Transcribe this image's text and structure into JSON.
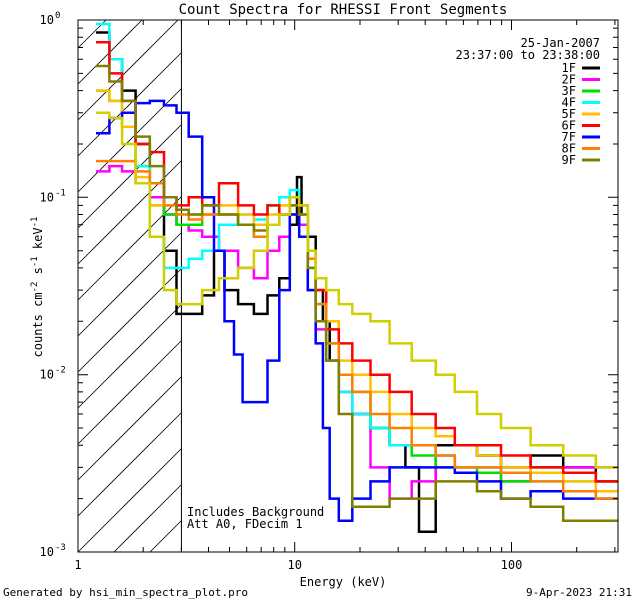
{
  "chart_data": {
    "type": "line",
    "title": "Count Spectra for RHESSI Front Segments",
    "xlabel": "Energy (keV)",
    "ylabel": "counts cm^-2 s^-1 keV^-1",
    "xscale": "log",
    "yscale": "log",
    "xlim": [
      1,
      310
    ],
    "ylim": [
      0.001,
      1
    ],
    "x_ticks": [
      {
        "value": 1,
        "label": "1"
      },
      {
        "value": 10,
        "label": "10"
      },
      {
        "value": 100,
        "label": "100"
      }
    ],
    "y_ticks": [
      {
        "value": 1,
        "label": "10",
        "exp": "0"
      },
      {
        "value": 0.1,
        "label": "10",
        "exp": "-1"
      },
      {
        "value": 0.01,
        "label": "10",
        "exp": "-2"
      },
      {
        "value": 0.001,
        "label": "10",
        "exp": "-3"
      }
    ],
    "hatched_region_keV": [
      1,
      3
    ],
    "date": "25-Jan-2007",
    "time_range": "23:37:00 to 23:38:00",
    "annotations": [
      "Includes Background",
      "Att A0, FDecim 1"
    ],
    "footer_left": "Generated by hsi_min_spectra_plot.pro",
    "footer_right": "9-Apr-2023 21:31",
    "series": [
      {
        "name": "1F",
        "color": "#000000",
        "x": [
          1.3,
          1.5,
          1.7,
          2.0,
          2.3,
          2.7,
          3.0,
          3.5,
          4.0,
          4.5,
          5.0,
          6.0,
          7.0,
          8.0,
          9.0,
          10.0,
          10.5,
          11.0,
          12.0,
          13.0,
          14.0,
          15.0,
          17.0,
          20.0,
          25.0,
          30.0,
          35.0,
          40.0,
          50.0,
          60.0,
          80.0,
          100.0,
          150.0,
          200.0,
          300.0
        ],
        "values": [
          0.85,
          0.6,
          0.4,
          0.2,
          0.12,
          0.05,
          0.022,
          0.022,
          0.028,
          0.05,
          0.03,
          0.025,
          0.022,
          0.028,
          0.035,
          0.07,
          0.13,
          0.08,
          0.06,
          0.03,
          0.02,
          0.012,
          0.008,
          0.006,
          0.005,
          0.004,
          0.003,
          0.0013,
          0.004,
          0.004,
          0.0035,
          0.003,
          0.0035,
          0.003,
          0.0025
        ]
      },
      {
        "name": "2F",
        "color": "#ff00ff",
        "x": [
          1.3,
          1.5,
          1.7,
          2.0,
          2.3,
          2.7,
          3.0,
          3.5,
          4.0,
          5.0,
          6.0,
          7.0,
          8.0,
          9.0,
          10.0,
          11.0,
          12.0,
          13.0,
          15.0,
          17.0,
          20.0,
          25.0,
          30.0,
          40.0,
          50.0,
          60.0,
          80.0,
          100.0,
          150.0,
          200.0,
          300.0
        ],
        "values": [
          0.14,
          0.15,
          0.14,
          0.12,
          0.1,
          0.08,
          0.07,
          0.065,
          0.06,
          0.05,
          0.04,
          0.035,
          0.05,
          0.06,
          0.08,
          0.07,
          0.03,
          0.018,
          0.012,
          0.008,
          0.006,
          0.003,
          0.002,
          0.0025,
          0.0035,
          0.003,
          0.003,
          0.0025,
          0.0028,
          0.003,
          0.003
        ]
      },
      {
        "name": "3F",
        "color": "#00e000",
        "x": [
          1.3,
          1.5,
          1.7,
          2.0,
          2.3,
          2.7,
          3.0,
          3.5,
          4.0,
          5.0,
          6.0,
          7.0,
          8.0,
          9.0,
          10.0,
          11.0,
          12.0,
          13.0,
          15.0,
          17.0,
          20.0,
          25.0,
          30.0,
          40.0,
          50.0,
          60.0,
          80.0,
          100.0,
          150.0,
          200.0,
          300.0
        ],
        "values": [
          0.4,
          0.35,
          0.25,
          0.15,
          0.09,
          0.08,
          0.07,
          0.07,
          0.08,
          0.08,
          0.07,
          0.06,
          0.09,
          0.08,
          0.1,
          0.08,
          0.04,
          0.025,
          0.015,
          0.01,
          0.008,
          0.005,
          0.004,
          0.0035,
          0.003,
          0.003,
          0.0028,
          0.0025,
          0.003,
          0.0028,
          0.0025
        ]
      },
      {
        "name": "4F",
        "color": "#00ffff",
        "x": [
          1.3,
          1.5,
          1.7,
          2.0,
          2.3,
          2.7,
          3.0,
          3.5,
          4.0,
          5.0,
          6.0,
          7.0,
          8.0,
          9.0,
          10.0,
          11.0,
          12.0,
          13.0,
          15.0,
          17.0,
          20.0,
          25.0,
          30.0,
          40.0,
          50.0,
          60.0,
          80.0,
          100.0,
          150.0,
          200.0,
          300.0
        ],
        "values": [
          0.95,
          0.6,
          0.3,
          0.15,
          0.06,
          0.04,
          0.04,
          0.045,
          0.05,
          0.07,
          0.08,
          0.075,
          0.09,
          0.1,
          0.11,
          0.09,
          0.04,
          0.025,
          0.012,
          0.008,
          0.006,
          0.005,
          0.004,
          0.004,
          0.0035,
          0.003,
          0.003,
          0.0028,
          0.0025,
          0.0025,
          0.002
        ]
      },
      {
        "name": "5F",
        "color": "#ffc000",
        "x": [
          1.3,
          1.5,
          1.7,
          2.0,
          2.3,
          2.7,
          3.0,
          3.5,
          4.0,
          5.0,
          6.0,
          7.0,
          8.0,
          9.0,
          10.0,
          11.0,
          12.0,
          13.0,
          15.0,
          17.0,
          20.0,
          25.0,
          30.0,
          40.0,
          50.0,
          60.0,
          80.0,
          100.0,
          150.0,
          200.0,
          300.0
        ],
        "values": [
          0.4,
          0.35,
          0.25,
          0.13,
          0.09,
          0.09,
          0.085,
          0.08,
          0.09,
          0.09,
          0.08,
          0.07,
          0.08,
          0.09,
          0.09,
          0.08,
          0.05,
          0.03,
          0.02,
          0.012,
          0.01,
          0.008,
          0.006,
          0.005,
          0.0045,
          0.004,
          0.0035,
          0.003,
          0.0028,
          0.0025,
          0.0022
        ]
      },
      {
        "name": "6F",
        "color": "#ff0000",
        "x": [
          1.3,
          1.5,
          1.7,
          2.0,
          2.3,
          2.7,
          3.0,
          3.5,
          4.0,
          5.0,
          6.0,
          7.0,
          8.0,
          9.0,
          10.0,
          11.0,
          12.0,
          13.0,
          15.0,
          17.0,
          20.0,
          25.0,
          30.0,
          40.0,
          50.0,
          60.0,
          80.0,
          100.0,
          150.0,
          200.0,
          300.0
        ],
        "values": [
          0.75,
          0.5,
          0.35,
          0.2,
          0.18,
          0.1,
          0.09,
          0.1,
          0.09,
          0.12,
          0.09,
          0.08,
          0.09,
          0.08,
          0.1,
          0.09,
          0.05,
          0.03,
          0.018,
          0.015,
          0.012,
          0.01,
          0.008,
          0.006,
          0.005,
          0.004,
          0.004,
          0.0035,
          0.003,
          0.0028,
          0.0025
        ]
      },
      {
        "name": "7F",
        "color": "#0000ff",
        "x": [
          1.3,
          1.5,
          1.7,
          2.0,
          2.3,
          2.7,
          3.0,
          3.5,
          4.0,
          4.5,
          5.0,
          5.5,
          6.0,
          7.0,
          8.0,
          9.0,
          10.0,
          11.0,
          12.0,
          13.0,
          14.0,
          15.0,
          17.0,
          20.0,
          25.0,
          30.0,
          40.0,
          50.0,
          60.0,
          80.0,
          100.0,
          150.0,
          200.0,
          300.0
        ],
        "values": [
          0.23,
          0.28,
          0.3,
          0.34,
          0.35,
          0.33,
          0.3,
          0.22,
          0.1,
          0.05,
          0.02,
          0.013,
          0.007,
          0.007,
          0.012,
          0.03,
          0.08,
          0.06,
          0.03,
          0.015,
          0.005,
          0.002,
          0.0015,
          0.002,
          0.0025,
          0.003,
          0.003,
          0.003,
          0.0028,
          0.0025,
          0.002,
          0.0022,
          0.002,
          0.002
        ]
      },
      {
        "name": "8F",
        "color": "#ff8000",
        "x": [
          1.3,
          1.5,
          1.7,
          2.0,
          2.3,
          2.7,
          3.0,
          3.5,
          4.0,
          5.0,
          6.0,
          7.0,
          8.0,
          9.0,
          10.0,
          11.0,
          12.0,
          13.0,
          15.0,
          17.0,
          20.0,
          25.0,
          30.0,
          40.0,
          50.0,
          60.0,
          80.0,
          100.0,
          150.0,
          200.0,
          300.0
        ],
        "values": [
          0.16,
          0.16,
          0.16,
          0.14,
          0.12,
          0.09,
          0.08,
          0.075,
          0.08,
          0.08,
          0.07,
          0.06,
          0.07,
          0.08,
          0.09,
          0.08,
          0.045,
          0.025,
          0.015,
          0.01,
          0.008,
          0.006,
          0.005,
          0.004,
          0.0035,
          0.003,
          0.003,
          0.0028,
          0.0025,
          0.0022,
          0.002
        ]
      },
      {
        "name": "9F",
        "color": "#808000",
        "x": [
          1.3,
          1.5,
          1.7,
          2.0,
          2.3,
          2.7,
          3.0,
          3.5,
          4.0,
          5.0,
          6.0,
          7.0,
          8.0,
          9.0,
          10.0,
          11.0,
          12.0,
          13.0,
          15.0,
          17.0,
          20.0,
          25.0,
          30.0,
          40.0,
          50.0,
          60.0,
          80.0,
          100.0,
          150.0,
          200.0,
          300.0
        ],
        "values": [
          0.55,
          0.45,
          0.35,
          0.22,
          0.15,
          0.1,
          0.085,
          0.08,
          0.09,
          0.08,
          0.07,
          0.065,
          0.07,
          0.08,
          0.09,
          0.08,
          0.04,
          0.02,
          0.012,
          0.006,
          0.0018,
          0.0018,
          0.002,
          0.002,
          0.0025,
          0.0025,
          0.0022,
          0.002,
          0.0018,
          0.0015,
          0.0015
        ]
      },
      {
        "name": "",
        "color": "#d0d000",
        "x": [
          1.3,
          1.5,
          1.7,
          2.0,
          2.3,
          2.7,
          3.0,
          3.5,
          4.0,
          5.0,
          6.0,
          7.0,
          8.0,
          9.0,
          10.0,
          11.0,
          12.0,
          13.0,
          15.0,
          17.0,
          20.0,
          25.0,
          30.0,
          40.0,
          50.0,
          60.0,
          80.0,
          100.0,
          150.0,
          200.0,
          300.0
        ],
        "values": [
          0.3,
          0.28,
          0.2,
          0.12,
          0.06,
          0.03,
          0.025,
          0.025,
          0.03,
          0.035,
          0.04,
          0.05,
          0.07,
          0.08,
          0.1,
          0.09,
          0.05,
          0.035,
          0.03,
          0.025,
          0.022,
          0.02,
          0.015,
          0.012,
          0.01,
          0.008,
          0.006,
          0.005,
          0.004,
          0.0035,
          0.003
        ]
      }
    ]
  }
}
